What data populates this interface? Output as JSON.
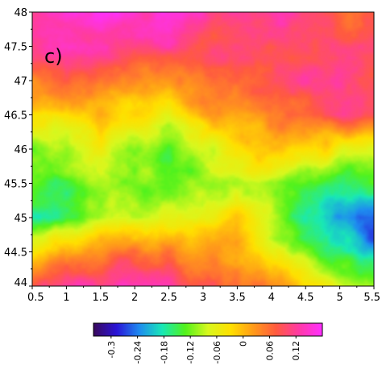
{
  "chart_data": {
    "type": "heatmap",
    "title": "",
    "xlabel": "",
    "ylabel": "",
    "panel_label": "c)",
    "xlim": [
      0.5,
      5.5
    ],
    "ylim": [
      44,
      48
    ],
    "x_ticks": [
      "0.5",
      "1",
      "1.5",
      "2",
      "2.5",
      "3",
      "3.5",
      "4",
      "4.5",
      "5",
      "5.5"
    ],
    "y_ticks": [
      "44",
      "44.5",
      "45",
      "45.5",
      "46",
      "46.5",
      "47",
      "47.5",
      "48"
    ],
    "colorbar": {
      "range": [
        -0.34,
        0.18
      ],
      "ticks": [
        "-0.3",
        "-0.24",
        "-0.18",
        "-0.12",
        "-0.06",
        "0",
        "0.06",
        "0.12"
      ],
      "colors": [
        "#3a0a5e",
        "#2a14d8",
        "#1e8cf0",
        "#19e8b6",
        "#52f21c",
        "#d8f81e",
        "#ffe000",
        "#ff9a1a",
        "#ff5a40",
        "#ff3aa6",
        "#ff30ff"
      ]
    },
    "grid_x": [
      0.5,
      1.0,
      1.5,
      2.0,
      2.5,
      3.0,
      3.5,
      4.0,
      4.5,
      5.0,
      5.5
    ],
    "grid_y": [
      48.0,
      47.5,
      47.0,
      46.5,
      46.0,
      45.5,
      45.0,
      44.5,
      44.0
    ],
    "values": [
      [
        0.16,
        0.16,
        0.16,
        0.15,
        0.14,
        0.13,
        0.12,
        0.12,
        0.1,
        0.08,
        0.06
      ],
      [
        0.13,
        0.14,
        0.14,
        0.12,
        0.11,
        0.09,
        0.1,
        0.08,
        0.09,
        0.1,
        0.09
      ],
      [
        0.05,
        0.06,
        0.04,
        0.04,
        0.03,
        0.06,
        0.07,
        0.09,
        0.1,
        0.11,
        0.1
      ],
      [
        -0.04,
        -0.02,
        0.0,
        -0.02,
        -0.04,
        0.0,
        0.02,
        0.04,
        0.08,
        0.1,
        0.09
      ],
      [
        -0.1,
        -0.1,
        -0.08,
        -0.12,
        -0.13,
        -0.08,
        -0.04,
        0.0,
        -0.02,
        -0.06,
        -0.06
      ],
      [
        -0.14,
        -0.13,
        -0.1,
        -0.12,
        -0.12,
        -0.1,
        -0.08,
        -0.1,
        -0.12,
        -0.16,
        -0.14
      ],
      [
        -0.17,
        -0.14,
        -0.08,
        -0.07,
        -0.08,
        -0.06,
        -0.02,
        -0.08,
        -0.16,
        -0.22,
        -0.28
      ],
      [
        -0.04,
        0.0,
        0.04,
        0.06,
        0.04,
        0.02,
        0.02,
        -0.06,
        -0.12,
        -0.18,
        -0.22
      ],
      [
        0.1,
        0.12,
        0.13,
        0.12,
        0.11,
        0.08,
        0.06,
        0.02,
        -0.02,
        -0.08,
        -0.12
      ]
    ]
  }
}
